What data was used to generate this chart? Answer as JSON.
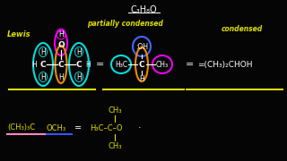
{
  "bg_color": "#050505",
  "title_text": "C₃H₈O",
  "title_color": "#ffffff",
  "lewis_label": "Lewis",
  "lewis_color": "#dddd00",
  "partial_label": "partially condensed",
  "partial_color": "#dddd00",
  "condensed_label": "condensed",
  "condensed_color": "#dddd00",
  "formula_condensed": "=(CH₃)₂CHOH",
  "cyan": "#00dddd",
  "magenta": "#ee00ee",
  "orange": "#ee8800",
  "blue": "#3355ff",
  "dark_blue": "#2233bb",
  "white": "#ffffff",
  "yellow": "#dddd00",
  "pink": "#ff88bb",
  "red_col": "#dd2200"
}
